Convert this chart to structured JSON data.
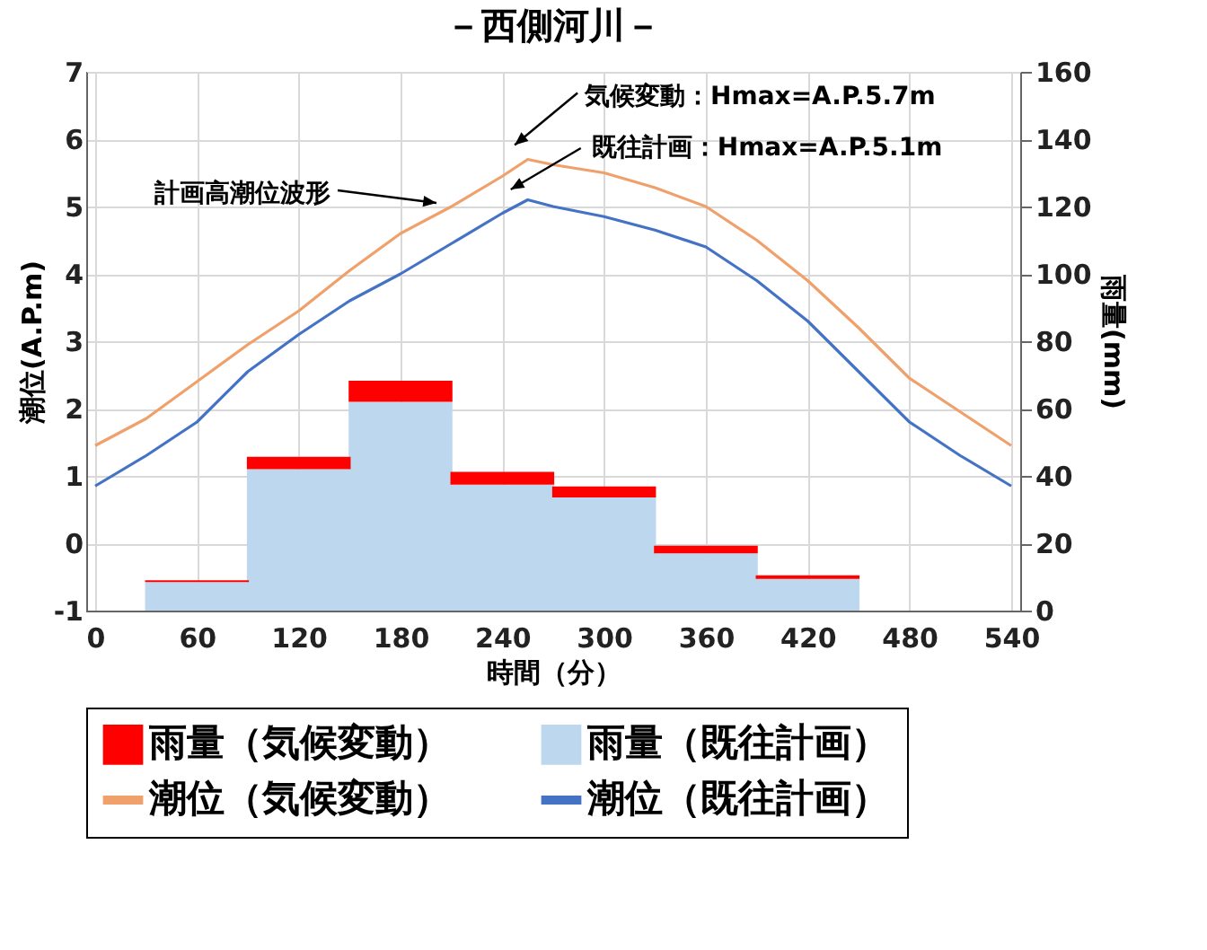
{
  "chart_data": {
    "type": "line",
    "title": "－西側河川－",
    "xlabel": "時間（分）",
    "ylabel": "潮位(A.P.m)",
    "y2label": "雨量(mm)",
    "xlim": [
      0,
      540
    ],
    "xticks": [
      0,
      60,
      120,
      180,
      240,
      300,
      360,
      420,
      480,
      540
    ],
    "ylim": [
      -1,
      7
    ],
    "yticks": [
      -1,
      0,
      1,
      2,
      3,
      4,
      5,
      6,
      7
    ],
    "y2lim": [
      0,
      160
    ],
    "y2ticks": [
      0,
      20,
      40,
      60,
      80,
      100,
      120,
      140,
      160
    ],
    "grid": true,
    "legend": "bottom",
    "stacked": true,
    "series": [
      {
        "name": "雨量（既往計画）",
        "type": "bar",
        "axis": "y2",
        "color": "#bdd7ee",
        "x": [
          60,
          120,
          180,
          240,
          300,
          360,
          420
        ],
        "values": [
          8.5,
          42,
          62,
          37.4,
          33.6,
          17,
          9.4
        ]
      },
      {
        "name": "雨量（気候変動）",
        "type": "bar",
        "axis": "y2",
        "color": "#ff0000",
        "x": [
          60,
          120,
          180,
          240,
          300,
          360,
          420
        ],
        "values": [
          0.5,
          3.7,
          6.3,
          3.8,
          3.3,
          2.3,
          1.1
        ]
      },
      {
        "name": "潮位（気候変動）",
        "color": "#f0a06a",
        "x": [
          0,
          30,
          60,
          90,
          120,
          150,
          180,
          210,
          240,
          255,
          270,
          300,
          330,
          360,
          390,
          420,
          450,
          480,
          510,
          540
        ],
        "values": [
          1.45,
          1.85,
          2.4,
          2.95,
          3.45,
          4.05,
          4.6,
          5.0,
          5.45,
          5.7,
          5.62,
          5.5,
          5.28,
          5.0,
          4.5,
          3.9,
          3.2,
          2.45,
          1.95,
          1.45
        ]
      },
      {
        "name": "潮位（既往計画）",
        "color": "#4472c4",
        "x": [
          0,
          30,
          60,
          90,
          120,
          150,
          180,
          210,
          240,
          255,
          270,
          300,
          330,
          360,
          390,
          420,
          450,
          480,
          510,
          540
        ],
        "values": [
          0.85,
          1.3,
          1.8,
          2.55,
          3.1,
          3.6,
          4.0,
          4.45,
          4.9,
          5.1,
          5.0,
          4.85,
          4.65,
          4.4,
          3.9,
          3.3,
          2.55,
          1.8,
          1.3,
          0.85
        ]
      }
    ],
    "annotations": [
      {
        "text": "気候変動：Hmax=A.P.5.7m",
        "x": 255,
        "y": 5.7
      },
      "既往計画：Hmax=A.P.5.1m",
      "計画高潮位波形"
    ]
  }
}
